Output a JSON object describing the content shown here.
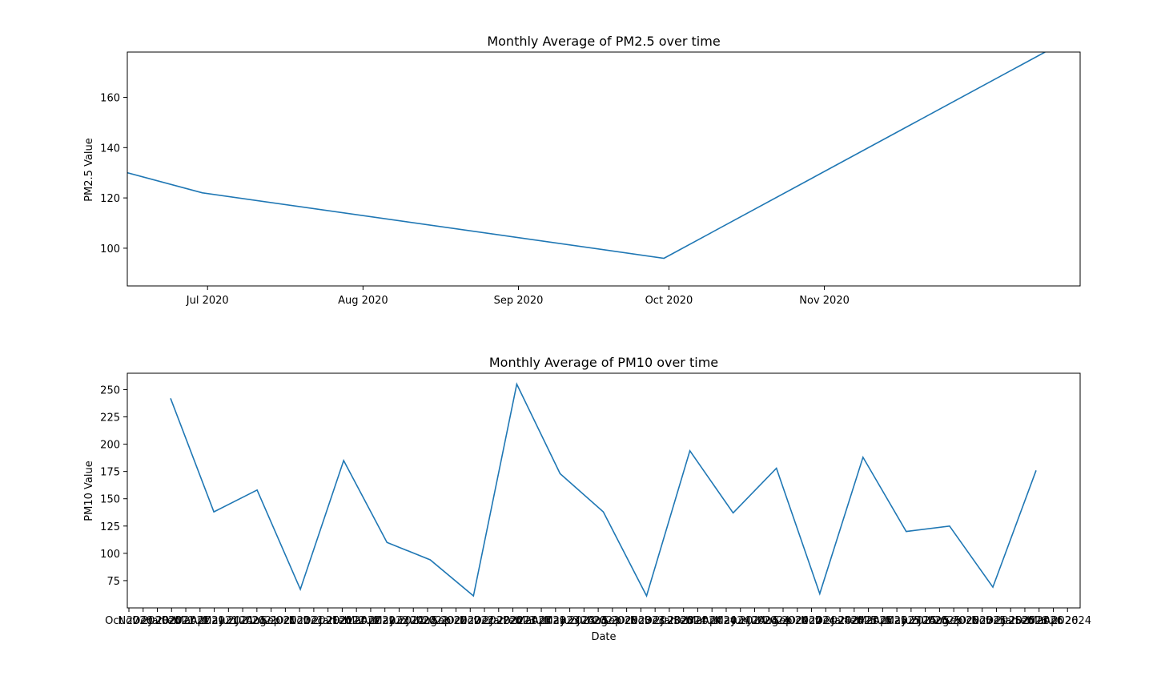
{
  "chart_data": [
    {
      "type": "line",
      "title": "Monthly Average of PM2.5 over time",
      "xlabel": "",
      "ylabel": "PM2.5 Value",
      "xlim": [
        "2020-06-15",
        "2020-12-22"
      ],
      "ylim": [
        85,
        178
      ],
      "x_ticks": [
        "Jul 2020",
        "Aug 2020",
        "Sep 2020",
        "Oct 2020",
        "Nov 2020"
      ],
      "y_ticks": [
        100,
        120,
        140,
        160
      ],
      "grid": false,
      "line_color": "#1f77b4",
      "series": [
        {
          "x": [
            "2020-06-15",
            "2020-06-30",
            "2020-09-30",
            "2020-12-15"
          ],
          "values": [
            130,
            122,
            96,
            178
          ]
        }
      ]
    },
    {
      "type": "line",
      "title": "Monthly Average of PM10 over time",
      "xlabel": "Date",
      "ylabel": "PM10 Value",
      "ylim": [
        50,
        265
      ],
      "y_ticks": [
        75,
        100,
        125,
        150,
        175,
        200,
        225,
        250
      ],
      "grid": false,
      "line_color": "#1f77b4",
      "x_tick_labels": [
        "Oct 2020",
        "Nov 2020",
        "Dec 2020",
        "Jan 2021",
        "Feb 2021",
        "Mar 2021",
        "Apr 2021",
        "May 2021",
        "Jun 2021",
        "Jul 2021",
        "Aug 2021",
        "Sep 2021",
        "Oct 2021",
        "Nov 2021",
        "Dec 2021",
        "Jan 2022",
        "Feb 2022",
        "Mar 2022",
        "Apr 2022",
        "May 2022",
        "Jun 2022",
        "Jul 2022",
        "Aug 2022",
        "Sep 2022",
        "Oct 2022",
        "Nov 2022",
        "Dec 2022",
        "Jan 2023",
        "Feb 2023",
        "Mar 2023",
        "Apr 2023",
        "May 2023",
        "Jun 2023",
        "Jul 2023",
        "Aug 2023",
        "Sep 2023",
        "Oct 2023",
        "Nov 2023",
        "Dec 2023",
        "Jan 2024",
        "Feb 2024",
        "Mar 2024",
        "Apr 2024",
        "May 2024",
        "Jun 2024",
        "Jul 2024",
        "Aug 2024",
        "Sep 2024",
        "Oct 2024",
        "Nov 2024",
        "Dec 2024",
        "Jan 2025",
        "Feb 2025",
        "Mar 2025",
        "Apr 2025",
        "May 2025",
        "Jun 2025",
        "Jul 2025",
        "Aug 2025",
        "Sep 2025",
        "Oct 2025",
        "Nov 2025",
        "Dec 2025",
        "Jan 2026",
        "Feb 2026",
        "Mar 2026",
        "Apr 2024"
      ],
      "series": [
        {
          "values": [
            242,
            138,
            158,
            67,
            185,
            110,
            94,
            61,
            255,
            173,
            138,
            61,
            194,
            137,
            178,
            63,
            188,
            120,
            125,
            69,
            176
          ]
        }
      ]
    }
  ]
}
